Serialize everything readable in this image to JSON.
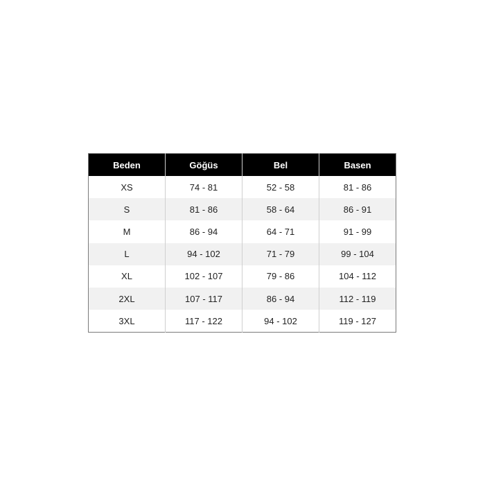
{
  "table": {
    "headers": [
      "Beden",
      "Göğüs",
      "Bel",
      "Basen"
    ],
    "rows": [
      [
        "XS",
        "74 - 81",
        "52 - 58",
        "81 - 86"
      ],
      [
        "S",
        "81 - 86",
        "58 - 64",
        "86 - 91"
      ],
      [
        "M",
        "86 - 94",
        "64 - 71",
        "91 - 99"
      ],
      [
        "L",
        "94 - 102",
        "71 - 79",
        "99 - 104"
      ],
      [
        "XL",
        "102 - 107",
        "79 - 86",
        "104 - 112"
      ],
      [
        "2XL",
        "107 - 117",
        "86 - 94",
        "112 - 119"
      ],
      [
        "3XL",
        "117 - 122",
        "94 - 102",
        "119 - 127"
      ]
    ],
    "colors": {
      "header_bg": "#000000",
      "header_text": "#ffffff",
      "alt_row_bg": "#f1f1f1"
    }
  }
}
